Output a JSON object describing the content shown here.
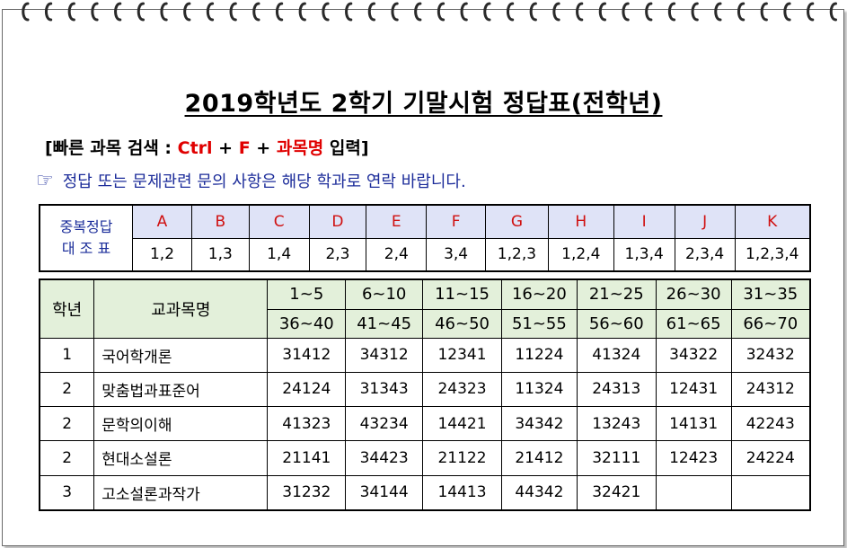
{
  "title": "2019학년도 2학기 기말시험 정답표(전학년)",
  "search": {
    "open": "[빠른 과목 검색 : ",
    "ctrl": "Ctrl",
    "plus1": " + ",
    "f": "F",
    "plus2": " + ",
    "subject": "과목명",
    "close": " 입력]"
  },
  "notice": {
    "hand_icon": "☞",
    "text": "정답 또는 문제관련 문의 사항은 해당 학과로 연락 바랍니다."
  },
  "duplicate_table": {
    "label_line1": "중복정답",
    "label_line2": "대 조 표",
    "keys": [
      "A",
      "B",
      "C",
      "D",
      "E",
      "F",
      "G",
      "H",
      "I",
      "J",
      "K"
    ],
    "values": [
      "1,2",
      "1,3",
      "1,4",
      "2,3",
      "2,4",
      "3,4",
      "1,2,3",
      "1,2,4",
      "1,3,4",
      "2,3,4",
      "1,2,3,4"
    ]
  },
  "answer_table": {
    "col_grade": "학년",
    "col_subject": "교과목명",
    "ranges_top": [
      "1~5",
      "6~10",
      "11~15",
      "16~20",
      "21~25",
      "26~30",
      "31~35"
    ],
    "ranges_bottom": [
      "36~40",
      "41~45",
      "46~50",
      "51~55",
      "56~60",
      "61~65",
      "66~70"
    ],
    "rows": [
      {
        "grade": "1",
        "subject": "국어학개론",
        "answers": [
          "31412",
          "34312",
          "12341",
          "11224",
          "41324",
          "34322",
          "32432"
        ]
      },
      {
        "grade": "2",
        "subject": "맞춤법과표준어",
        "answers": [
          "24124",
          "31343",
          "24323",
          "11324",
          "24313",
          "12431",
          "24312"
        ]
      },
      {
        "grade": "2",
        "subject": "문학의이해",
        "answers": [
          "41323",
          "43234",
          "14421",
          "34342",
          "13243",
          "14131",
          "42243"
        ]
      },
      {
        "grade": "2",
        "subject": "현대소설론",
        "answers": [
          "21141",
          "34423",
          "21122",
          "21412",
          "32111",
          "12423",
          "24224"
        ]
      },
      {
        "grade": "3",
        "subject": "고소설론과작가",
        "answers": [
          "31232",
          "34144",
          "14413",
          "44342",
          "32421",
          "",
          ""
        ]
      }
    ]
  }
}
